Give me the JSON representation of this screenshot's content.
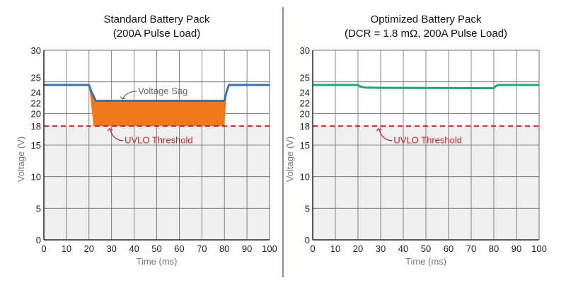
{
  "chart_data": [
    {
      "type": "line",
      "title": "Standard Battery Pack",
      "subtitle": "(200A Pulse Load)",
      "xlabel": "Time (ms)",
      "ylabel": "Voltage (V)",
      "xlim": [
        0,
        100
      ],
      "ylim": [
        0,
        30
      ],
      "xticks": [
        0,
        10,
        20,
        30,
        40,
        50,
        60,
        70,
        80,
        90,
        100
      ],
      "yticks": [
        0,
        5,
        10,
        15,
        18,
        20,
        22,
        24,
        25,
        30
      ],
      "grid": true,
      "series": [
        {
          "x": [
            0,
            20,
            21,
            23,
            80,
            81,
            82,
            100
          ],
          "y": [
            24.5,
            24.5,
            23.5,
            22,
            22,
            23.5,
            24.5,
            24.5
          ],
          "color": "#3a6fb0"
        }
      ],
      "fill_between": {
        "from": 18,
        "x_range": [
          20,
          80
        ],
        "color": "#f07a1a"
      },
      "threshold": {
        "value": 18,
        "label": "UVLO Threshold",
        "color": "#c8202a"
      },
      "annotations": [
        {
          "text": "Voltage Sag",
          "x": 38,
          "y": 23.5,
          "color": "#666"
        },
        {
          "text": "UVLO Threshold",
          "x": 32,
          "y": 15.7,
          "color": "#c8202a"
        }
      ],
      "below_threshold_color": "#f0f0f0"
    },
    {
      "type": "line",
      "title": "Optimized Battery Pack",
      "subtitle": "(DCR = 1.8 mΩ, 200A Pulse Load)",
      "xlabel": "Time (ms)",
      "ylabel": "Voltage (V)",
      "xlim": [
        0,
        100
      ],
      "ylim": [
        0,
        30
      ],
      "xticks": [
        0,
        10,
        20,
        30,
        40,
        50,
        60,
        70,
        80,
        90,
        100
      ],
      "yticks": [
        0,
        5,
        10,
        15,
        18,
        20,
        22,
        24,
        25,
        30
      ],
      "grid": true,
      "series": [
        {
          "x": [
            0,
            20,
            21,
            23,
            30,
            79,
            80,
            81,
            82,
            100
          ],
          "y": [
            24.5,
            24.5,
            24.25,
            24.1,
            24.05,
            24.0,
            24.0,
            24.35,
            24.5,
            24.5
          ],
          "color": "#1fa87a"
        }
      ],
      "threshold": {
        "value": 18,
        "label": "UVLO Threshold",
        "color": "#c8202a"
      },
      "annotations": [
        {
          "text": "UVLO Threshold",
          "x": 32,
          "y": 15.7,
          "color": "#c8202a"
        }
      ],
      "below_threshold_color": "#f0f0f0"
    }
  ]
}
